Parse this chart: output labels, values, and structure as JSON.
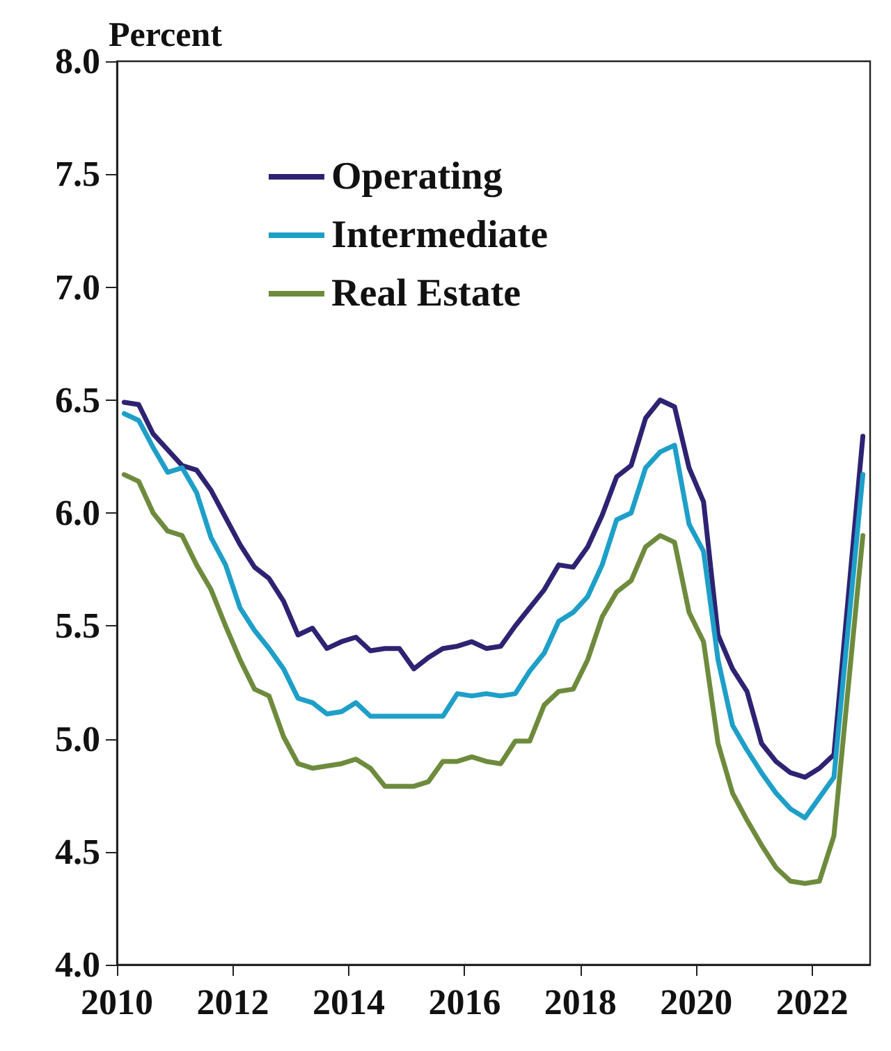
{
  "chart_data": {
    "type": "line",
    "ylabel": "Percent",
    "x": [
      2010.125,
      2010.375,
      2010.625,
      2010.875,
      2011.125,
      2011.375,
      2011.625,
      2011.875,
      2012.125,
      2012.375,
      2012.625,
      2012.875,
      2013.125,
      2013.375,
      2013.625,
      2013.875,
      2014.125,
      2014.375,
      2014.625,
      2014.875,
      2015.125,
      2015.375,
      2015.625,
      2015.875,
      2016.125,
      2016.375,
      2016.625,
      2016.875,
      2017.125,
      2017.375,
      2017.625,
      2017.875,
      2018.125,
      2018.375,
      2018.625,
      2018.875,
      2019.125,
      2019.375,
      2019.625,
      2019.875,
      2020.125,
      2020.375,
      2020.625,
      2020.875,
      2021.125,
      2021.375,
      2021.625,
      2021.875,
      2022.125,
      2022.375,
      2022.875
    ],
    "series": [
      {
        "name": "Operating",
        "color": "#2e2372",
        "values": [
          6.49,
          6.48,
          6.35,
          6.28,
          6.21,
          6.19,
          6.1,
          5.98,
          5.86,
          5.76,
          5.71,
          5.61,
          5.46,
          5.49,
          5.4,
          5.43,
          5.45,
          5.39,
          5.4,
          5.4,
          5.31,
          5.36,
          5.4,
          5.41,
          5.43,
          5.4,
          5.41,
          5.5,
          5.58,
          5.66,
          5.77,
          5.76,
          5.85,
          5.99,
          6.16,
          6.21,
          6.42,
          6.5,
          6.47,
          6.2,
          6.05,
          5.46,
          5.31,
          5.21,
          4.98,
          4.9,
          4.85,
          4.83,
          4.87,
          4.93,
          6.34
        ]
      },
      {
        "name": "Intermediate",
        "color": "#1e9fc8",
        "values": [
          6.44,
          6.41,
          6.29,
          6.18,
          6.2,
          6.09,
          5.89,
          5.77,
          5.58,
          5.48,
          5.4,
          5.31,
          5.18,
          5.16,
          5.11,
          5.12,
          5.16,
          5.1,
          5.1,
          5.1,
          5.1,
          5.1,
          5.1,
          5.2,
          5.19,
          5.2,
          5.19,
          5.2,
          5.3,
          5.38,
          5.52,
          5.56,
          5.63,
          5.77,
          5.97,
          6.0,
          6.2,
          6.27,
          6.3,
          5.95,
          5.83,
          5.35,
          5.06,
          4.95,
          4.85,
          4.76,
          4.69,
          4.65,
          4.74,
          4.83,
          6.17
        ]
      },
      {
        "name": "Real Estate",
        "color": "#6e8b3d",
        "values": [
          6.17,
          6.14,
          6.0,
          5.92,
          5.9,
          5.77,
          5.66,
          5.5,
          5.35,
          5.22,
          5.19,
          5.01,
          4.89,
          4.87,
          4.88,
          4.89,
          4.91,
          4.87,
          4.79,
          4.79,
          4.79,
          4.81,
          4.9,
          4.9,
          4.92,
          4.9,
          4.89,
          4.99,
          4.99,
          5.15,
          5.21,
          5.22,
          5.35,
          5.54,
          5.65,
          5.7,
          5.85,
          5.9,
          5.87,
          5.56,
          5.43,
          4.98,
          4.76,
          4.64,
          4.53,
          4.43,
          4.37,
          4.36,
          4.37,
          4.57,
          5.9
        ]
      }
    ],
    "xlim": [
      2010,
      2023
    ],
    "xticks": [
      2010,
      2012,
      2014,
      2016,
      2018,
      2020,
      2022
    ],
    "ylim": [
      4,
      8
    ],
    "yticks": [
      {
        "value": 4,
        "label": "4.0"
      },
      {
        "value": 4.5,
        "label": "4.5"
      },
      {
        "value": 5,
        "label": "5.0"
      },
      {
        "value": 5.5,
        "label": "5.5"
      },
      {
        "value": 6,
        "label": "6.0"
      },
      {
        "value": 6.5,
        "label": "6.5"
      },
      {
        "value": 7,
        "label": "7.0"
      },
      {
        "value": 7.5,
        "label": "7.5"
      },
      {
        "value": 8,
        "label": "8.0"
      }
    ],
    "legend": "top left",
    "marker": "none",
    "line_style": "solid",
    "grid": false
  }
}
